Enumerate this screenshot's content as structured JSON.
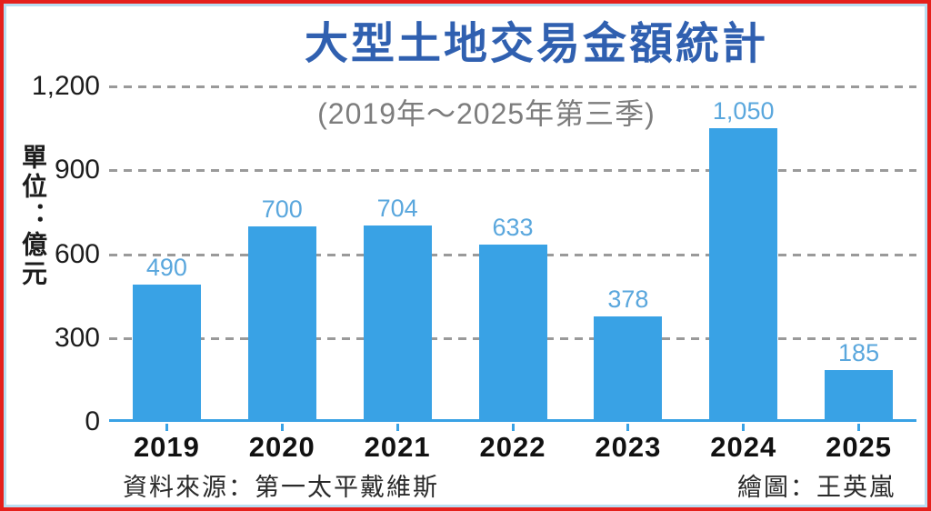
{
  "header": {
    "title": "大型土地交易金額統計",
    "subtitle": "(2019年～2025年第三季)"
  },
  "footer": {
    "source": "資料來源：第一太平戴維斯",
    "credit": "繪圖：王英嵐"
  },
  "colors": {
    "bar": "#39a2e5",
    "value_label": "#5aa7dd",
    "title": "#3060b0",
    "subtitle": "#7d7d7d",
    "gridline": "#9a9a9a",
    "outer_frame": "#e5201c",
    "inner_frame": "#b9def2"
  },
  "chart_data": {
    "type": "bar",
    "title": "大型土地交易金額統計",
    "subtitle": "(2019年～2025年第三季)",
    "categories": [
      "2019",
      "2020",
      "2021",
      "2022",
      "2023",
      "2024",
      "2025"
    ],
    "values": [
      490,
      700,
      704,
      633,
      378,
      1050,
      185
    ],
    "value_labels": [
      "490",
      "700",
      "704",
      "633",
      "378",
      "1,050",
      "185"
    ],
    "xlabel": "",
    "ylabel": "單位：億元",
    "ylim": [
      0,
      1200
    ],
    "yticks": [
      0,
      300,
      600,
      900,
      1200
    ],
    "ytick_labels": [
      "0",
      "300",
      "600",
      "900",
      "1,200"
    ],
    "grid": "horizontal-dashed",
    "legend": "none",
    "bar_color": "#39a2e5",
    "value_label_color": "#5aa7dd"
  }
}
